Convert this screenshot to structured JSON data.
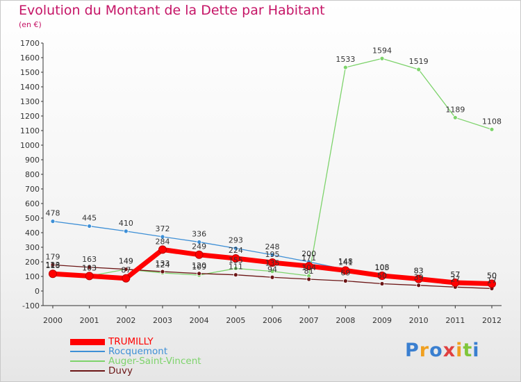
{
  "title": "Evolution du Montant de la Dette par Habitant",
  "unit_label": "(en €)",
  "brand": "Proxiti",
  "chart_data": {
    "type": "line",
    "title": "Evolution du Montant de la Dette par Habitant",
    "subtitle": "(en €)",
    "x": [
      2000,
      2001,
      2002,
      2003,
      2004,
      2005,
      2006,
      2007,
      2008,
      2009,
      2010,
      2011,
      2012
    ],
    "ylim": [
      -100,
      1700
    ],
    "yticks": [
      -100,
      0,
      100,
      200,
      300,
      400,
      500,
      600,
      700,
      800,
      900,
      1000,
      1100,
      1200,
      1300,
      1400,
      1500,
      1600,
      1700
    ],
    "grid": false,
    "legend_position": "bottom-left",
    "series": [
      {
        "name": "TRUMILLY",
        "color": "#ff0000",
        "values": [
          118,
          103,
          87,
          284,
          249,
          224,
          195,
          171,
          141,
          105,
          83,
          57,
          50
        ]
      },
      {
        "name": "Rocquemont",
        "color": "#3d8fd6",
        "values": [
          478,
          445,
          410,
          372,
          336,
          293,
          248,
          200,
          148,
          108,
          83,
          57,
          50
        ]
      },
      {
        "name": "Auger-Saint-Vincent",
        "color": "#7dd36b",
        "values": [
          123,
          103,
          149,
          124,
          109,
          155,
          135,
          104,
          1533,
          1594,
          1519,
          1189,
          1108
        ]
      },
      {
        "name": "Duvy",
        "color": "#6b1515",
        "values": [
          179,
          163,
          149,
          133,
          120,
          111,
          94,
          81,
          69,
          50,
          39,
          27,
          17
        ]
      }
    ]
  }
}
